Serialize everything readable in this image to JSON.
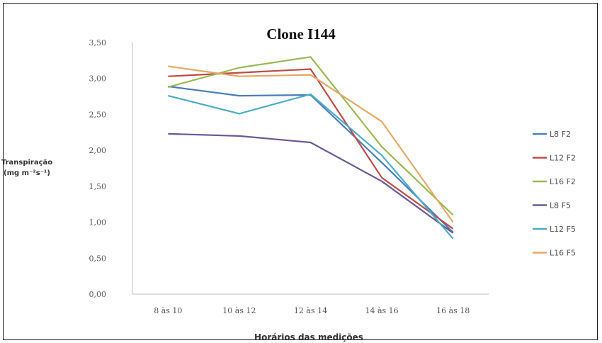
{
  "chart_data": {
    "type": "line",
    "title": "Clone I144",
    "xlabel": "Horários das medições",
    "ylabel_line1": "Transpiração",
    "ylabel_line2": "(mg m⁻²s⁻¹)",
    "categories": [
      "8 às 10",
      "10 às 12",
      "12 às 14",
      "14 às 16",
      "16 às 18"
    ],
    "ylim": [
      0,
      3.5
    ],
    "yticks": [
      "0,00",
      "0,50",
      "1,00",
      "1,50",
      "2,00",
      "2,50",
      "3,00",
      "3,50"
    ],
    "grid": false,
    "legend_position": "right",
    "series": [
      {
        "name": "L8 F2",
        "color": "#4a7ebb",
        "values": [
          2.89,
          2.76,
          2.77,
          1.83,
          0.86
        ]
      },
      {
        "name": "L12 F2",
        "color": "#be4b48",
        "values": [
          3.03,
          3.08,
          3.13,
          1.62,
          0.91
        ]
      },
      {
        "name": "L16 F2",
        "color": "#98b954",
        "values": [
          2.88,
          3.15,
          3.3,
          2.05,
          1.1
        ]
      },
      {
        "name": "L8 F5",
        "color": "#6b5a93",
        "values": [
          2.23,
          2.2,
          2.11,
          1.57,
          0.85
        ]
      },
      {
        "name": "L12 F5",
        "color": "#4bacc6",
        "values": [
          2.76,
          2.51,
          2.78,
          1.93,
          0.77
        ]
      },
      {
        "name": "L16 F5",
        "color": "#e3a866",
        "values": [
          3.17,
          3.03,
          3.05,
          2.4,
          1.0
        ]
      }
    ]
  }
}
